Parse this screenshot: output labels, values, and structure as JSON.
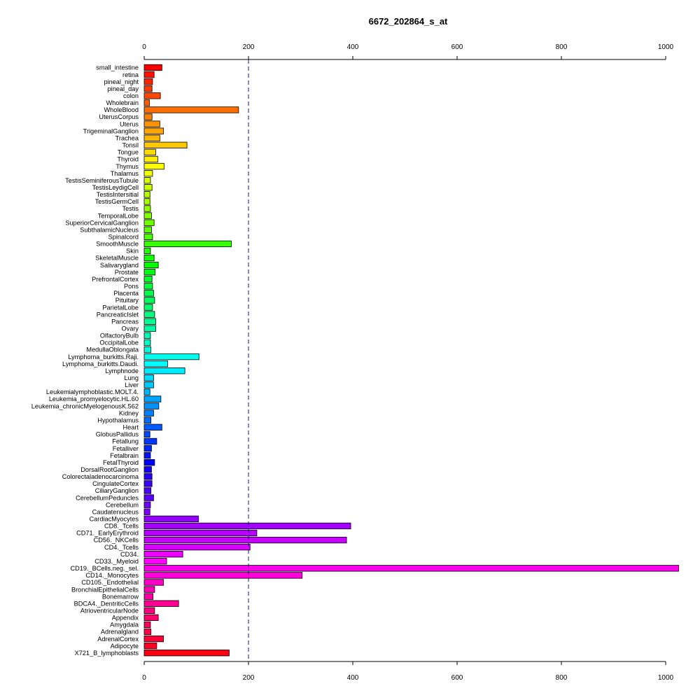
{
  "chart_data": {
    "type": "bar",
    "orientation": "horizontal",
    "title": "6672_202864_s_at",
    "xlabel": "",
    "ylabel": "",
    "xlim": [
      0,
      1000
    ],
    "x_ticks": [
      0,
      200,
      400,
      600,
      800,
      1000
    ],
    "x_tick_labels": [
      "0",
      "200",
      "400",
      "600",
      "800",
      "1000"
    ],
    "reference_line": 200,
    "grid": false,
    "categories": [
      "small_intestine",
      "retina",
      "pineal_night",
      "pineal_day",
      "colon",
      "Wholebrain",
      "WholeBlood",
      "UterusCorpus",
      "Uterus",
      "TrigeminalGanglion",
      "Trachea",
      "Tonsil",
      "Tongue",
      "Thyroid",
      "Thymus",
      "Thalamus",
      "TestisSeminiferousTubule",
      "TestisLeydigCell",
      "TestisIntersitial",
      "TestisGermCell",
      "Testis",
      "TemporalLobe",
      "SuperiorCervicalGanglion",
      "SubthalamicNucleus",
      "Spinalcord",
      "SmoothMuscle",
      "Skin",
      "SkeletalMuscle",
      "Salivarygland",
      "Prostate",
      "PrefrontalCortex",
      "Pons",
      "Placenta",
      "Pituitary",
      "ParietalLobe",
      "PancreaticIslet",
      "Pancreas",
      "Ovary",
      "OlfactoryBulb",
      "OccipitalLobe",
      "MedullaOblongata",
      "Lymphoma_burkitts.Raji.",
      "Lymphoma_burkitts.Daudi.",
      "Lymphnode",
      "Lung",
      "Liver",
      "Leukemialymphoblastic.MOLT.4.",
      "Leukemia_promyelocytic.HL.60",
      "Leukemia_chronicMyelogenousK.562",
      "Kidney",
      "Hypothalamus",
      "Heart",
      "GlobusPallidus",
      "Fetallung",
      "Fetalliver",
      "Fetalbrain",
      "FetalThyroid",
      "DorsalRootGanglion",
      "Colorectaladenocarcinoma",
      "CingulateCortex",
      "CiliaryGanglion",
      "CerebellumPeduncles",
      "Cerebellum",
      "Caudatenucleus",
      "CardiacMyocytes",
      "CD8._Tcells",
      "CD71._EarlyErythroid",
      "CD56._NKCells",
      "CD4._Tcells",
      "CD34.",
      "CD33._Myeloid",
      "CD19._BCells.neg._sel.",
      "CD14._Monocytes",
      "CD105._Endothelial",
      "BronchialEpithelialCells",
      "Bonemarrow",
      "BDCA4._DentriticCells",
      "AtrioventricularNode",
      "Appendix",
      "Amygdala",
      "Adrenalgland",
      "AdrenalCortex",
      "Adipocyte",
      "X721_B_lymphoblasts"
    ],
    "values": [
      34,
      19,
      16,
      15,
      31,
      10,
      181,
      15,
      30,
      37,
      30,
      82,
      22,
      26,
      38,
      16,
      12,
      15,
      11,
      11,
      12,
      14,
      19,
      14,
      16,
      167,
      12,
      19,
      27,
      21,
      15,
      16,
      18,
      20,
      16,
      20,
      22,
      22,
      12,
      12,
      13,
      105,
      45,
      78,
      18,
      18,
      11,
      32,
      28,
      18,
      13,
      34,
      11,
      24,
      14,
      12,
      20,
      14,
      15,
      15,
      13,
      18,
      12,
      11,
      104,
      396,
      216,
      388,
      203,
      74,
      43,
      1025,
      303,
      37,
      20,
      17,
      66,
      20,
      27,
      12,
      13,
      37,
      24,
      163
    ]
  }
}
